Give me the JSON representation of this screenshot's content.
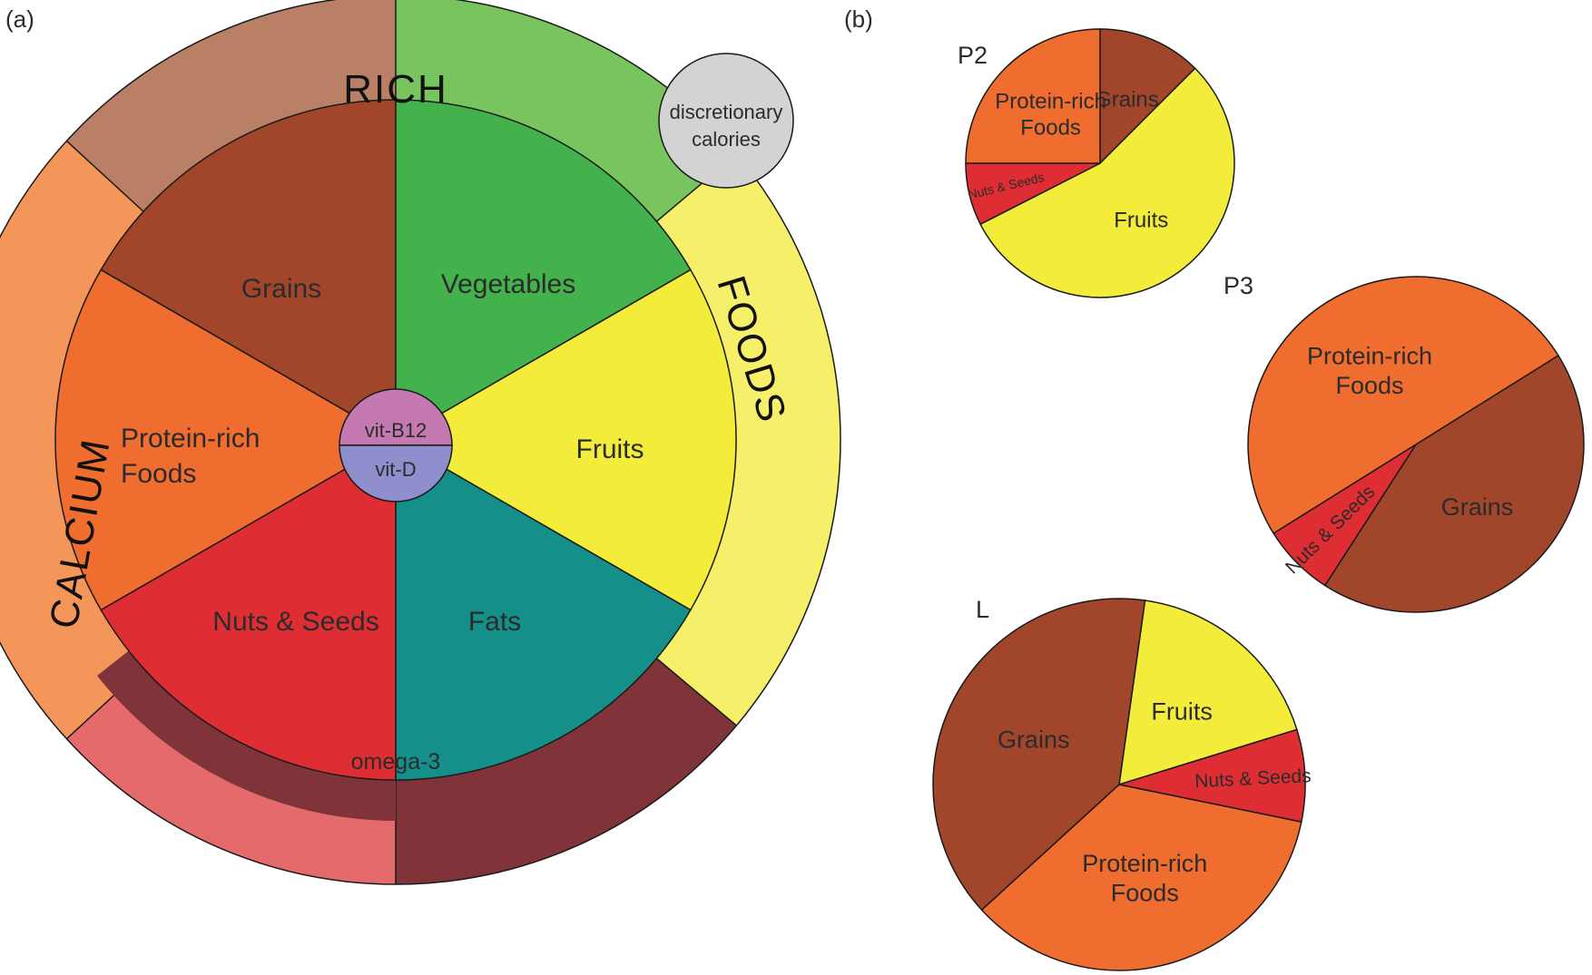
{
  "panels": {
    "a": "(a)",
    "b": "(b)"
  },
  "wheel": {
    "segments": [
      {
        "label": "Grains",
        "color": "#a2462b"
      },
      {
        "label": "Vegetables",
        "color": "#44b24c"
      },
      {
        "label": "Fruits",
        "color": "#f4ec3b"
      },
      {
        "label": "Fats",
        "color": "#148f8a"
      },
      {
        "label": "Nuts & Seeds",
        "color": "#de2e34"
      },
      {
        "label": "Protein-rich",
        "label2": "Foods",
        "color": "#ef6d2e"
      }
    ],
    "center_top": "vit-B12",
    "center_bottom": "vit-D",
    "center_top_color": "#c47ab0",
    "center_bottom_color": "#8e8fcc",
    "rim_rich": "RICH",
    "rim_foods": "FOODS",
    "rim_calcium": "CALCIUM",
    "omega": "omega-3",
    "discretionary_1": "discretionary",
    "discretionary_2": "calories",
    "rim_colors": {
      "brown": "#b98066",
      "green": "#78c45e",
      "yellow": "#f5ef6a",
      "orange": "#f4965a",
      "pink": "#e46a6c",
      "maroon": "#803338",
      "grey": "#d3d3d3"
    }
  },
  "pies": [
    {
      "name": "P2",
      "slices": [
        {
          "label": "Grains",
          "value": 12.5,
          "color": "#a2462b"
        },
        {
          "label": "Fruits",
          "value": 55,
          "color": "#f4ec3b"
        },
        {
          "label": "Nuts & Seeds",
          "value": 7.5,
          "color": "#de2e34"
        },
        {
          "label": "Protein-rich Foods",
          "value": 25,
          "color": "#ef6d2e"
        }
      ]
    },
    {
      "name": "P3",
      "slices": [
        {
          "label": "Grains",
          "value": 43,
          "color": "#a2462b"
        },
        {
          "label": "Nuts & Seeds",
          "value": 7,
          "color": "#de2e34"
        },
        {
          "label": "Protein-rich Foods",
          "value": 50,
          "color": "#ef6d2e"
        }
      ]
    },
    {
      "name": "L",
      "slices": [
        {
          "label": "Fruits",
          "value": 18,
          "color": "#f4ec3b"
        },
        {
          "label": "Nuts & Seeds",
          "value": 8,
          "color": "#de2e34"
        },
        {
          "label": "Protein-rich Foods",
          "value": 35,
          "color": "#ef6d2e"
        },
        {
          "label": "Grains",
          "value": 39,
          "color": "#a2462b"
        }
      ]
    }
  ]
}
